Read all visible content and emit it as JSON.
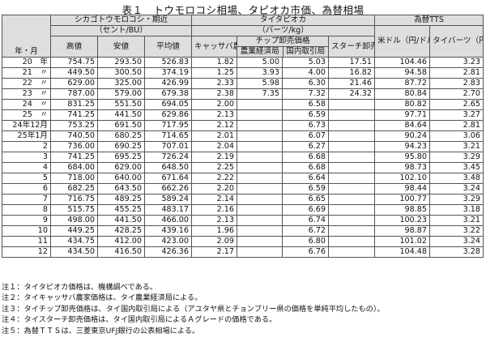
{
  "title": "表１　トウモロコシ相場、タピオカ市価、為替相場",
  "headers": {
    "corner": "年・月",
    "corn_group": "シカゴトウモロコシ・期近",
    "corn_unit": "（セント/BU）",
    "corn_high": "高値",
    "corn_low": "安値",
    "corn_avg": "平均値",
    "tapioca_group": "タイタピオカ",
    "tapioca_unit": "（バーツ/kg）",
    "cassava": "キャッサバ農家価格",
    "chip_group": "チップ卸売価格",
    "chip_farm": "農業経済局",
    "chip_domestic": "国内取引局",
    "starch": "スターチ卸売価格",
    "fx_group": "為替TTS",
    "usd": "米ドル（円/ドル）",
    "baht": "タイバーツ（円/バーツ）"
  },
  "rows": [
    {
      "label": "20　年",
      "cells": [
        "754.75",
        "293.50",
        "526.83",
        "1.82",
        "5.00",
        "5.03",
        "17.51",
        "104.46",
        "3.23"
      ]
    },
    {
      "label": "21　〃",
      "cells": [
        "449.50",
        "300.50",
        "374.19",
        "1.25",
        "3.93",
        "4.00",
        "16.82",
        "94.58",
        "2.81"
      ]
    },
    {
      "label": "22　〃",
      "cells": [
        "629.00",
        "325.00",
        "426.99",
        "2.33",
        "5.98",
        "6.30",
        "21.46",
        "87.72",
        "2.83"
      ]
    },
    {
      "label": "23　〃",
      "cells": [
        "787.00",
        "579.00",
        "679.38",
        "2.38",
        "7.35",
        "7.32",
        "24.32",
        "80.84",
        "2.70"
      ]
    },
    {
      "label": "24　〃",
      "cells": [
        "831.25",
        "551.50",
        "694.05",
        "2.00",
        "",
        "6.58",
        "",
        "80.82",
        "2.65"
      ]
    },
    {
      "label": "25　〃",
      "cells": [
        "741.25",
        "441.50",
        "629.86",
        "2.13",
        "",
        "6.59",
        "",
        "97.71",
        "3.27"
      ]
    },
    {
      "label": "24年12月",
      "cells": [
        "753.25",
        "691.50",
        "717.95",
        "2.12",
        "",
        "6.73",
        "",
        "84.64",
        "2.81"
      ]
    },
    {
      "label": "25年1月",
      "cells": [
        "740.50",
        "680.25",
        "714.65",
        "2.01",
        "",
        "6.07",
        "",
        "90.24",
        "3.06"
      ]
    },
    {
      "label": "2",
      "cells": [
        "736.00",
        "690.25",
        "707.01",
        "2.04",
        "",
        "6.27",
        "",
        "94.23",
        "3.21"
      ]
    },
    {
      "label": "3",
      "cells": [
        "741.25",
        "695.25",
        "726.24",
        "2.19",
        "",
        "6.68",
        "",
        "95.80",
        "3.29"
      ]
    },
    {
      "label": "4",
      "cells": [
        "684.00",
        "629.00",
        "648.50",
        "2.25",
        "",
        "6.68",
        "",
        "98.73",
        "3.45"
      ]
    },
    {
      "label": "5",
      "cells": [
        "718.00",
        "640.00",
        "671.64",
        "2.22",
        "",
        "6.64",
        "",
        "102.10",
        "3.48"
      ]
    },
    {
      "label": "6",
      "cells": [
        "682.25",
        "643.50",
        "662.26",
        "2.20",
        "",
        "6.59",
        "",
        "98.44",
        "3.24"
      ]
    },
    {
      "label": "7",
      "cells": [
        "716.75",
        "489.25",
        "589.24",
        "2.14",
        "",
        "6.65",
        "",
        "100.77",
        "3.29"
      ]
    },
    {
      "label": "8",
      "cells": [
        "515.75",
        "455.25",
        "483.17",
        "2.16",
        "",
        "6.69",
        "",
        "98.85",
        "3.18"
      ]
    },
    {
      "label": "9",
      "cells": [
        "498.00",
        "441.50",
        "466.00",
        "2.13",
        "",
        "6.74",
        "",
        "100.23",
        "3.21"
      ]
    },
    {
      "label": "10",
      "cells": [
        "449.25",
        "428.25",
        "439.16",
        "1.96",
        "",
        "6.72",
        "",
        "98.87",
        "3.22"
      ]
    },
    {
      "label": "11",
      "cells": [
        "434.75",
        "412.00",
        "423.00",
        "2.09",
        "",
        "6.80",
        "",
        "101.02",
        "3.24"
      ]
    },
    {
      "label": "12",
      "cells": [
        "434.50",
        "416.50",
        "426.36",
        "2.17",
        "",
        "6.76",
        "",
        "104.48",
        "3.28"
      ]
    }
  ],
  "notes": [
    "注１：タイタピオカ価格は、機構調べである。",
    "注２：タイキャッサバ農家価格は、タイ農業経済局による。",
    "注３：タイチップ卸売価格は、タイ国内取引局による（アユタヤ県とチョンブリー県の価格を単純平均したもの）。",
    "注４：タイスターチ卸売価格は、タイ国内取引局によるＡグレードの価格である。",
    "注５：為替ＴＴＳは、三菱東京UFJ銀行の公表相場による。"
  ]
}
